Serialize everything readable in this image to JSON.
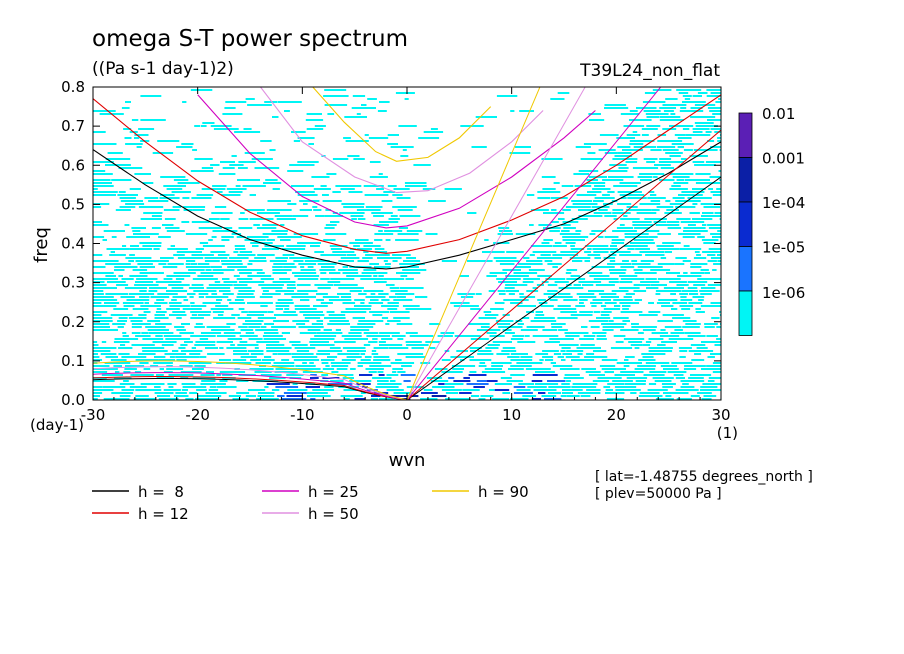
{
  "chart_data": {
    "type": "heatmap",
    "title": "omega S-T power spectrum",
    "subtitle": "((Pa s-1 day-1)2)",
    "run_label": "T39L24_non_flat",
    "xlabel": "wvn",
    "ylabel": "freq",
    "x_unit": "(1)",
    "y_unit": "(day-1)",
    "xlim": [
      -30,
      30
    ],
    "ylim": [
      0,
      0.8
    ],
    "x_ticks": [
      "-30",
      "-20",
      "-10",
      "0",
      "10",
      "20",
      "30"
    ],
    "y_ticks": [
      "0.0",
      "0.1",
      "0.2",
      "0.3",
      "0.4",
      "0.5",
      "0.6",
      "0.7",
      "0.8"
    ],
    "colorbar": {
      "labels": [
        "0.01",
        "0.001",
        "1e-04",
        "1e-05",
        "1e-06"
      ],
      "colors": [
        "#5b1fb5",
        "#0b1fa6",
        "#0a2bd0",
        "#1a74ff",
        "#00f5f5"
      ]
    },
    "legend": [
      {
        "label": "h =  8",
        "color": "#000000"
      },
      {
        "label": "h = 12",
        "color": "#e00000"
      },
      {
        "label": "h = 25",
        "color": "#d000c0"
      },
      {
        "label": "h = 50",
        "color": "#e090e0"
      },
      {
        "label": "h = 90",
        "color": "#f0c800"
      }
    ],
    "dispersion_series": [
      {
        "name": "h =  8",
        "color": "#000000",
        "points": [
          [
            -30,
            0.64
          ],
          [
            -25,
            0.55
          ],
          [
            -20,
            0.47
          ],
          [
            -15,
            0.41
          ],
          [
            -10,
            0.37
          ],
          [
            -5,
            0.34
          ],
          [
            -2,
            0.335
          ],
          [
            0,
            0.34
          ],
          [
            5,
            0.37
          ],
          [
            10,
            0.41
          ],
          [
            15,
            0.45
          ],
          [
            20,
            0.51
          ],
          [
            25,
            0.58
          ],
          [
            30,
            0.66
          ]
        ]
      },
      {
        "name": "h = 12",
        "color": "#e00000",
        "points": [
          [
            -30,
            0.77
          ],
          [
            -25,
            0.66
          ],
          [
            -20,
            0.56
          ],
          [
            -15,
            0.48
          ],
          [
            -10,
            0.42
          ],
          [
            -5,
            0.385
          ],
          [
            -2,
            0.375
          ],
          [
            0,
            0.38
          ],
          [
            5,
            0.41
          ],
          [
            10,
            0.46
          ],
          [
            15,
            0.52
          ],
          [
            20,
            0.6
          ],
          [
            25,
            0.69
          ],
          [
            30,
            0.78
          ]
        ]
      },
      {
        "name": "h = 25",
        "color": "#d000c0",
        "points": [
          [
            -20,
            0.78
          ],
          [
            -15,
            0.63
          ],
          [
            -10,
            0.52
          ],
          [
            -5,
            0.455
          ],
          [
            -2,
            0.44
          ],
          [
            0,
            0.445
          ],
          [
            5,
            0.49
          ],
          [
            10,
            0.57
          ],
          [
            15,
            0.67
          ],
          [
            18,
            0.74
          ]
        ]
      },
      {
        "name": "h = 50",
        "color": "#e090e0",
        "points": [
          [
            -14,
            0.8
          ],
          [
            -10,
            0.66
          ],
          [
            -5,
            0.57
          ],
          [
            -1,
            0.53
          ],
          [
            2,
            0.535
          ],
          [
            6,
            0.58
          ],
          [
            10,
            0.66
          ],
          [
            13,
            0.74
          ]
        ]
      },
      {
        "name": "h = 90",
        "color": "#f0c800",
        "points": [
          [
            -9,
            0.8
          ],
          [
            -6,
            0.71
          ],
          [
            -3,
            0.635
          ],
          [
            -1,
            0.61
          ],
          [
            2,
            0.62
          ],
          [
            5,
            0.67
          ],
          [
            8,
            0.75
          ]
        ]
      }
    ]
  }
}
